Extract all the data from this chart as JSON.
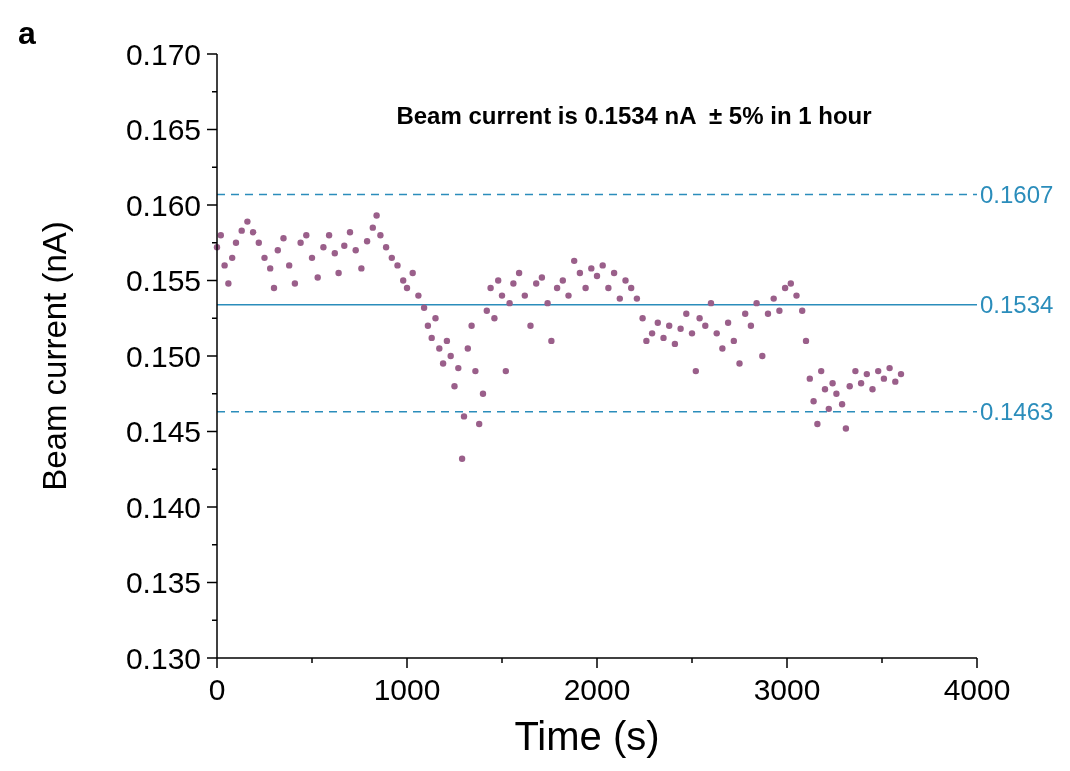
{
  "chart_data": {
    "type": "scatter",
    "xlabel": "Time (s)",
    "ylabel": "Beam current (nA)",
    "annotations": [
      "a",
      "Beam current is 0.1534 nA  ± 5% in 1 hour"
    ],
    "xlim": [
      0,
      4000
    ],
    "xticks": [
      0,
      {
        "value": 500,
        "label": null
      },
      1000,
      {
        "value": 1500,
        "label": null
      },
      2000,
      {
        "value": 2500,
        "label": null
      },
      3000,
      {
        "value": 3500,
        "label": null
      },
      4000
    ],
    "ylim": [
      0.13,
      0.17
    ],
    "yticks": [
      {
        "value": 0.13,
        "label": "0.130"
      },
      {
        "value": 0.1325,
        "label": null
      },
      {
        "value": 0.135,
        "label": "0.135"
      },
      {
        "value": 0.1375,
        "label": null
      },
      {
        "value": 0.14,
        "label": "0.140"
      },
      {
        "value": 0.1425,
        "label": null
      },
      {
        "value": 0.145,
        "label": "0.145"
      },
      {
        "value": 0.1475,
        "label": null
      },
      {
        "value": 0.15,
        "label": "0.150"
      },
      {
        "value": 0.1525,
        "label": null
      },
      {
        "value": 0.155,
        "label": "0.155"
      },
      {
        "value": 0.1575,
        "label": null
      },
      {
        "value": 0.16,
        "label": "0.160"
      },
      {
        "value": 0.1625,
        "label": null
      },
      {
        "value": 0.165,
        "label": "0.165"
      },
      {
        "value": 0.1675,
        "label": null
      },
      {
        "value": 0.17,
        "label": "0.170"
      }
    ],
    "grid": false,
    "marker": "circle",
    "ref_lines": [
      {
        "axis": "y",
        "value": 0.1607,
        "label": "0.1607",
        "color": "#2b8dbb",
        "line_style": "dashed"
      },
      {
        "axis": "y",
        "value": 0.1534,
        "label": "0.1534",
        "color": "#2b8dbb",
        "line_style": "solid"
      },
      {
        "axis": "y",
        "value": 0.1463,
        "label": "0.1463",
        "color": "#2b8dbb",
        "line_style": "dashed"
      }
    ],
    "series": [
      {
        "color": "#9a5f8a",
        "x": [
          0,
          20,
          40,
          60,
          80,
          100,
          130,
          160,
          190,
          220,
          250,
          280,
          300,
          320,
          350,
          380,
          410,
          440,
          470,
          500,
          530,
          560,
          590,
          620,
          640,
          670,
          700,
          730,
          760,
          790,
          820,
          840,
          860,
          890,
          920,
          950,
          980,
          1000,
          1030,
          1060,
          1090,
          1110,
          1130,
          1150,
          1170,
          1190,
          1210,
          1230,
          1250,
          1270,
          1290,
          1300,
          1320,
          1340,
          1360,
          1380,
          1400,
          1420,
          1440,
          1460,
          1480,
          1500,
          1520,
          1540,
          1560,
          1590,
          1620,
          1650,
          1680,
          1710,
          1740,
          1760,
          1790,
          1820,
          1850,
          1880,
          1910,
          1940,
          1970,
          2000,
          2030,
          2060,
          2090,
          2120,
          2150,
          2180,
          2210,
          2240,
          2260,
          2290,
          2320,
          2350,
          2380,
          2410,
          2440,
          2470,
          2500,
          2520,
          2540,
          2570,
          2600,
          2630,
          2660,
          2690,
          2720,
          2750,
          2780,
          2810,
          2840,
          2870,
          2900,
          2930,
          2960,
          2990,
          3020,
          3050,
          3080,
          3100,
          3120,
          3140,
          3160,
          3180,
          3200,
          3220,
          3240,
          3260,
          3290,
          3310,
          3330,
          3360,
          3390,
          3420,
          3450,
          3480,
          3510,
          3540,
          3570,
          3600
        ],
        "values": [
          0.1572,
          0.158,
          0.156,
          0.1548,
          0.1565,
          0.1575,
          0.1583,
          0.1589,
          0.1582,
          0.1575,
          0.1565,
          0.1558,
          0.1545,
          0.157,
          0.1578,
          0.156,
          0.1548,
          0.1575,
          0.158,
          0.1565,
          0.1552,
          0.1572,
          0.158,
          0.1568,
          0.1555,
          0.1573,
          0.1582,
          0.157,
          0.1558,
          0.1576,
          0.1585,
          0.1593,
          0.158,
          0.1572,
          0.1565,
          0.156,
          0.155,
          0.1545,
          0.1555,
          0.154,
          0.1532,
          0.152,
          0.1512,
          0.1525,
          0.1505,
          0.1495,
          0.151,
          0.15,
          0.148,
          0.1492,
          0.1432,
          0.146,
          0.1505,
          0.152,
          0.149,
          0.1455,
          0.1475,
          0.153,
          0.1545,
          0.1525,
          0.155,
          0.154,
          0.149,
          0.1535,
          0.1548,
          0.1555,
          0.154,
          0.152,
          0.1548,
          0.1552,
          0.1535,
          0.151,
          0.1545,
          0.155,
          0.154,
          0.1563,
          0.1555,
          0.1545,
          0.1558,
          0.1553,
          0.156,
          0.1545,
          0.1555,
          0.1538,
          0.155,
          0.1545,
          0.1538,
          0.1525,
          0.151,
          0.1515,
          0.1522,
          0.1512,
          0.152,
          0.1508,
          0.1518,
          0.1528,
          0.1515,
          0.149,
          0.1525,
          0.152,
          0.1535,
          0.1515,
          0.1505,
          0.1522,
          0.151,
          0.1495,
          0.1528,
          0.152,
          0.1535,
          0.15,
          0.1528,
          0.1538,
          0.153,
          0.1545,
          0.1548,
          0.154,
          0.153,
          0.151,
          0.1485,
          0.147,
          0.1455,
          0.149,
          0.1478,
          0.1465,
          0.1482,
          0.1475,
          0.1468,
          0.1452,
          0.148,
          0.149,
          0.1482,
          0.1488,
          0.1478,
          0.149,
          0.1485,
          0.1492,
          0.1483,
          0.1488
        ]
      }
    ]
  }
}
